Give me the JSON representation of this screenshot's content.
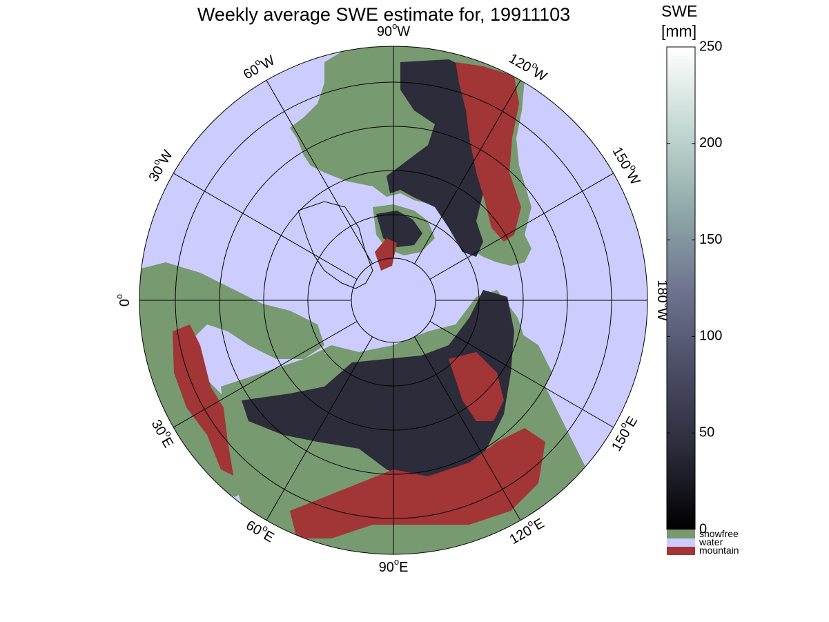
{
  "title": "Weekly average SWE estimate for, 19911103",
  "colorbar": {
    "label_line1": "SWE",
    "label_line2": "[mm]",
    "min": 0,
    "max": 250,
    "ticks": [
      "0",
      "50",
      "100",
      "150",
      "200",
      "250"
    ],
    "gradient_colors": [
      "#000000",
      "#2a2a38",
      "#4b4c66",
      "#6e7590",
      "#8fa8a8",
      "#c3d8d2",
      "#ffffff"
    ],
    "categories": [
      {
        "label": "snowfree",
        "color": "#779a70"
      },
      {
        "label": "water",
        "color": "#ccccff"
      },
      {
        "label": "mountain",
        "color": "#a23535"
      }
    ]
  },
  "map": {
    "projection": "north polar stereographic",
    "ocean_color": "#ccccff",
    "land_color": "#779a70",
    "snow_color": "#2d2c3a",
    "mountain_color": "#a23535",
    "longitude_labels": [
      {
        "deg": "90",
        "hemi": "W"
      },
      {
        "deg": "120",
        "hemi": "W"
      },
      {
        "deg": "150",
        "hemi": "W"
      },
      {
        "deg": "180",
        "hemi": "W"
      },
      {
        "deg": "150",
        "hemi": "E"
      },
      {
        "deg": "120",
        "hemi": "E"
      },
      {
        "deg": "90",
        "hemi": "E"
      },
      {
        "deg": "60",
        "hemi": "E"
      },
      {
        "deg": "30",
        "hemi": "E"
      },
      {
        "deg": "0",
        "hemi": ""
      },
      {
        "deg": "30",
        "hemi": "W"
      },
      {
        "deg": "60",
        "hemi": "W"
      }
    ]
  }
}
